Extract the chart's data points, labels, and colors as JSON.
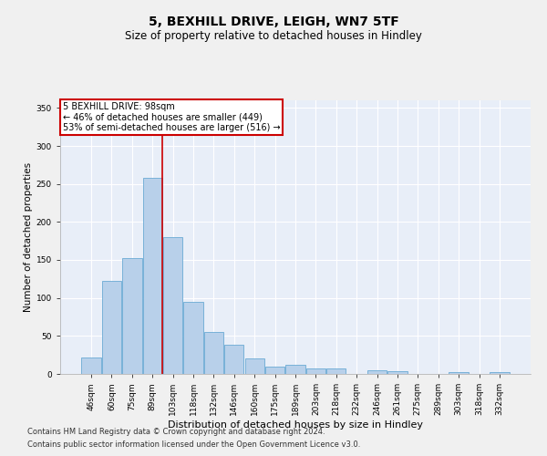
{
  "title1": "5, BEXHILL DRIVE, LEIGH, WN7 5TF",
  "title2": "Size of property relative to detached houses in Hindley",
  "xlabel": "Distribution of detached houses by size in Hindley",
  "ylabel": "Number of detached properties",
  "categories": [
    "46sqm",
    "60sqm",
    "75sqm",
    "89sqm",
    "103sqm",
    "118sqm",
    "132sqm",
    "146sqm",
    "160sqm",
    "175sqm",
    "189sqm",
    "203sqm",
    "218sqm",
    "232sqm",
    "246sqm",
    "261sqm",
    "275sqm",
    "289sqm",
    "303sqm",
    "318sqm",
    "332sqm"
  ],
  "values": [
    22,
    122,
    152,
    258,
    180,
    95,
    55,
    38,
    20,
    10,
    12,
    7,
    7,
    0,
    5,
    4,
    0,
    0,
    2,
    0,
    2
  ],
  "bar_color": "#b8d0ea",
  "bar_edge_color": "#6aaad4",
  "background_color": "#e8eef8",
  "grid_color": "#ffffff",
  "red_line_x": 3.5,
  "annotation_title": "5 BEXHILL DRIVE: 98sqm",
  "annotation_line1": "← 46% of detached houses are smaller (449)",
  "annotation_line2": "53% of semi-detached houses are larger (516) →",
  "annotation_box_color": "#ffffff",
  "annotation_border_color": "#cc0000",
  "red_line_color": "#cc0000",
  "ylim": [
    0,
    360
  ],
  "yticks": [
    0,
    50,
    100,
    150,
    200,
    250,
    300,
    350
  ],
  "footnote1": "Contains HM Land Registry data © Crown copyright and database right 2024.",
  "footnote2": "Contains public sector information licensed under the Open Government Licence v3.0.",
  "title1_fontsize": 10,
  "title2_fontsize": 8.5,
  "xlabel_fontsize": 8,
  "ylabel_fontsize": 7.5,
  "tick_fontsize": 6.5,
  "annotation_fontsize": 7,
  "footnote_fontsize": 6
}
